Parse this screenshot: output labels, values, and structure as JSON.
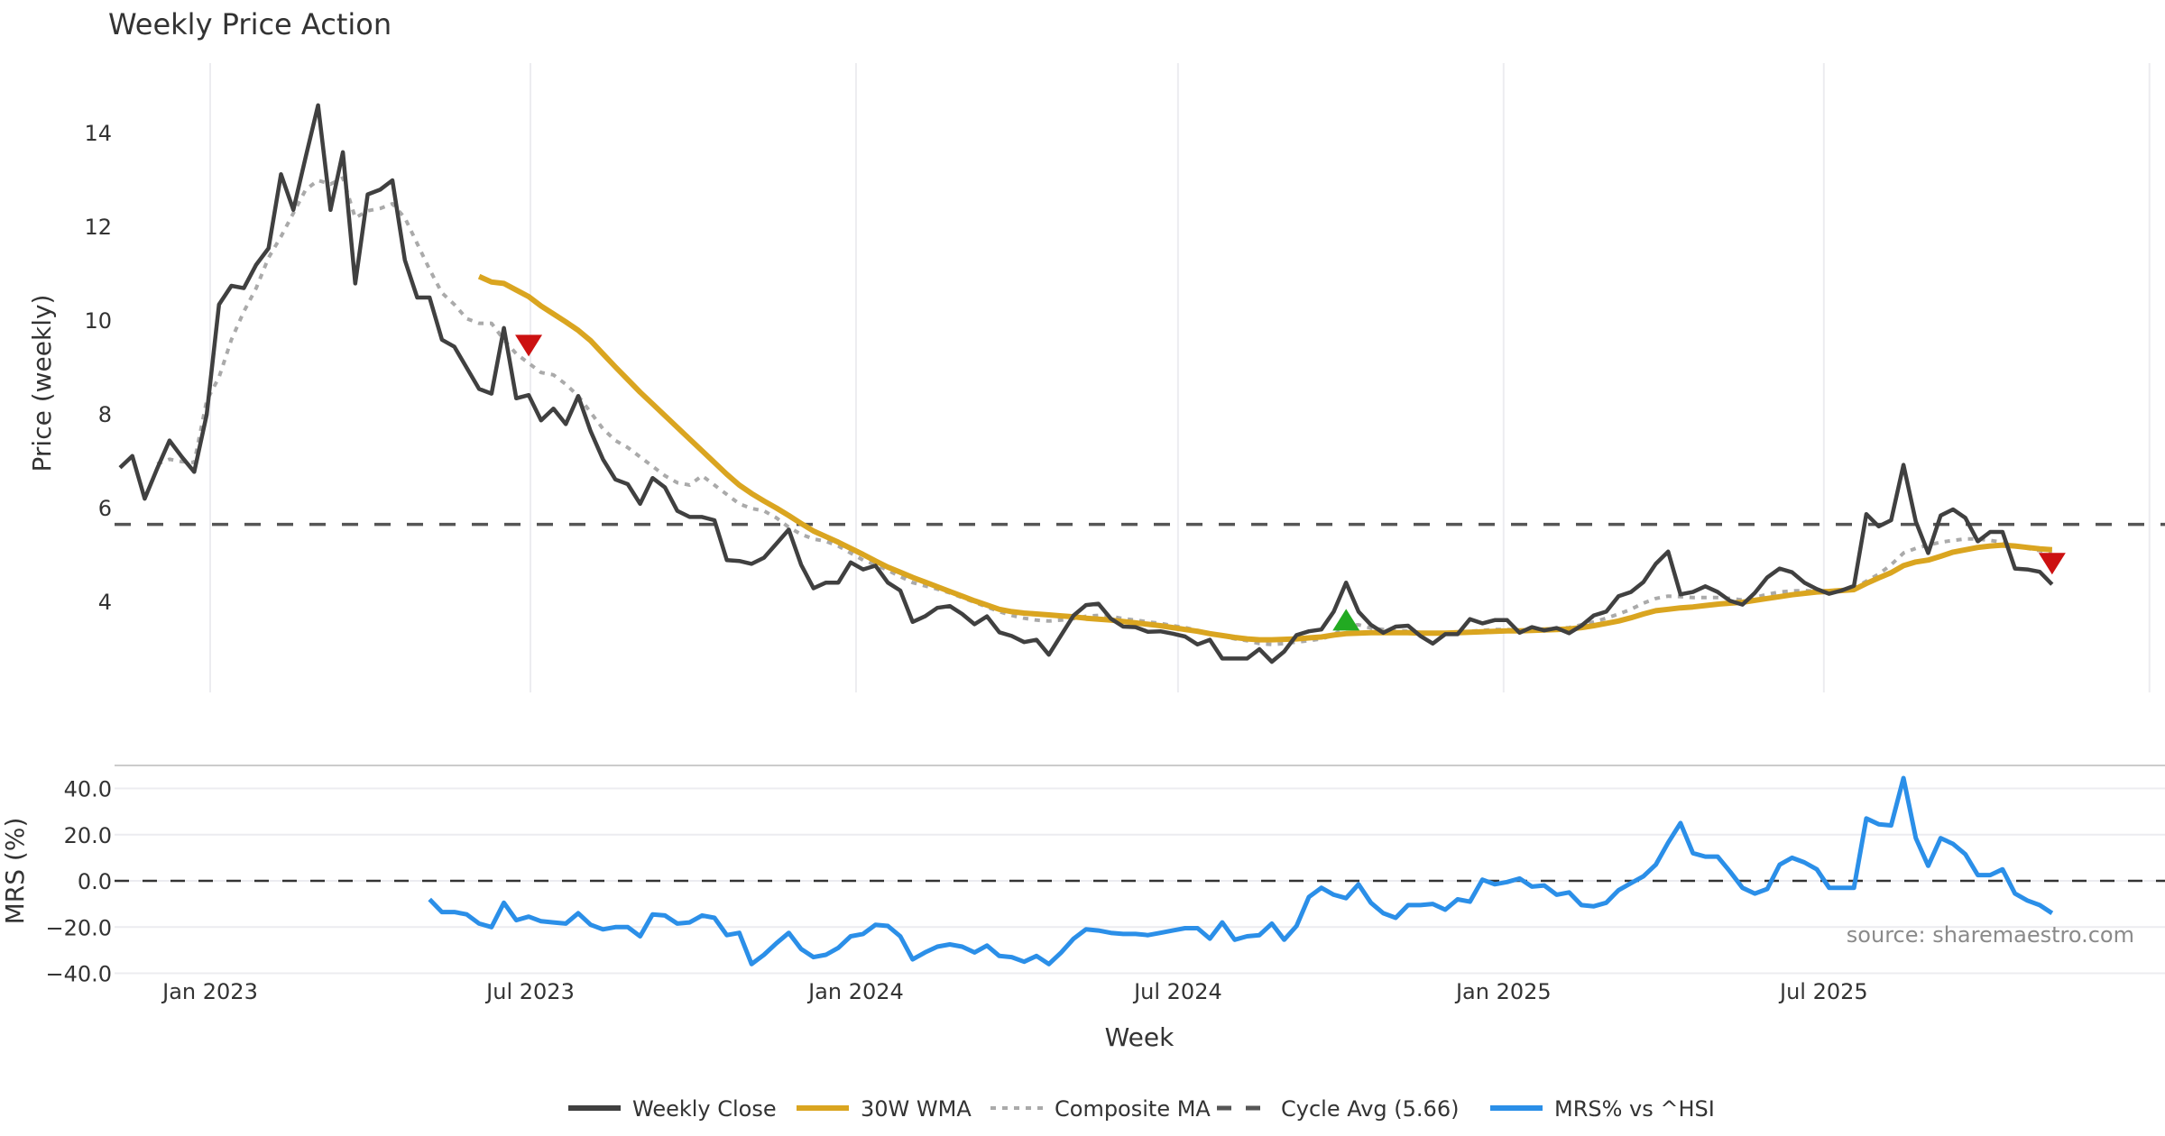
{
  "chart_data": [
    {
      "type": "line",
      "title": "Weekly Price Action",
      "xlabel": "",
      "ylabel": "Price (weekly)",
      "ylim": [
        1.7,
        15.5
      ],
      "yticks": [
        4,
        6,
        8,
        10,
        12,
        14
      ],
      "grid": "vertical",
      "x_start": "2022-11-11",
      "x_step_days": 7,
      "x_ticks": [
        {
          "date": "2023-01-01",
          "label": "Jan 2023"
        },
        {
          "date": "2023-07-01",
          "label": "Jul 2023"
        },
        {
          "date": "2024-01-01",
          "label": "Jan 2024"
        },
        {
          "date": "2024-07-01",
          "label": "Jul 2024"
        },
        {
          "date": "2025-01-01",
          "label": "Jan 2025"
        },
        {
          "date": "2025-07-01",
          "label": "Jul 2025"
        },
        {
          "date": "2026-01-01",
          "label": ""
        }
      ],
      "series": [
        {
          "name": "Weekly Close",
          "color": "#404040",
          "style": "solid",
          "start_index": 0,
          "values": [
            6.87,
            7.12,
            6.21,
            6.85,
            7.45,
            7.1,
            6.78,
            8.0,
            10.35,
            10.75,
            10.7,
            11.2,
            11.55,
            13.13,
            12.37,
            13.5,
            14.6,
            12.37,
            13.6,
            10.8,
            12.7,
            12.8,
            13.0,
            11.3,
            10.5,
            10.5,
            9.6,
            9.45,
            9.0,
            8.55,
            8.45,
            9.85,
            8.35,
            8.42,
            7.88,
            8.13,
            7.8,
            8.4,
            7.65,
            7.05,
            6.62,
            6.52,
            6.1,
            6.65,
            6.45,
            5.95,
            5.82,
            5.82,
            5.75,
            4.9,
            4.88,
            4.82,
            4.95,
            5.25,
            5.55,
            4.8,
            4.3,
            4.42,
            4.42,
            4.85,
            4.7,
            4.78,
            4.42,
            4.25,
            3.58,
            3.7,
            3.88,
            3.92,
            3.75,
            3.53,
            3.7,
            3.36,
            3.28,
            3.15,
            3.2,
            2.88,
            3.3,
            3.72,
            3.94,
            3.97,
            3.65,
            3.48,
            3.47,
            3.37,
            3.38,
            3.33,
            3.27,
            3.1,
            3.2,
            2.8,
            2.8,
            2.8,
            3.0,
            2.73,
            2.95,
            3.3,
            3.38,
            3.42,
            3.8,
            4.42,
            3.8,
            3.52,
            3.35,
            3.48,
            3.5,
            3.28,
            3.12,
            3.32,
            3.32,
            3.64,
            3.55,
            3.62,
            3.62,
            3.35,
            3.47,
            3.4,
            3.45,
            3.34,
            3.5,
            3.72,
            3.8,
            4.13,
            4.22,
            4.43,
            4.82,
            5.08,
            4.17,
            4.22,
            4.34,
            4.22,
            4.03,
            3.95,
            4.2,
            4.53,
            4.72,
            4.64,
            4.42,
            4.28,
            4.18,
            4.25,
            4.35,
            5.88,
            5.62,
            5.75,
            6.93,
            5.72,
            5.05,
            5.85,
            5.98,
            5.8,
            5.3,
            5.5,
            5.5,
            4.72,
            4.7,
            4.65,
            4.38
          ]
        },
        {
          "name": "30W WMA",
          "color": "#DAA520",
          "style": "solid",
          "start_index": 29,
          "values": [
            10.95,
            10.83,
            10.8,
            10.66,
            10.52,
            10.32,
            10.15,
            9.98,
            9.8,
            9.58,
            9.3,
            9.02,
            8.75,
            8.48,
            8.23,
            7.98,
            7.73,
            7.48,
            7.23,
            6.98,
            6.73,
            6.5,
            6.32,
            6.16,
            6.01,
            5.85,
            5.68,
            5.52,
            5.4,
            5.28,
            5.15,
            5.02,
            4.88,
            4.75,
            4.64,
            4.53,
            4.43,
            4.33,
            4.23,
            4.13,
            4.03,
            3.94,
            3.85,
            3.8,
            3.77,
            3.75,
            3.73,
            3.71,
            3.69,
            3.66,
            3.64,
            3.62,
            3.59,
            3.56,
            3.53,
            3.5,
            3.46,
            3.42,
            3.38,
            3.33,
            3.29,
            3.25,
            3.22,
            3.2,
            3.2,
            3.21,
            3.22,
            3.24,
            3.26,
            3.3,
            3.33,
            3.34,
            3.35,
            3.35,
            3.35,
            3.35,
            3.34,
            3.34,
            3.34,
            3.35,
            3.36,
            3.37,
            3.38,
            3.39,
            3.39,
            3.4,
            3.41,
            3.42,
            3.43,
            3.46,
            3.5,
            3.55,
            3.6,
            3.67,
            3.75,
            3.82,
            3.85,
            3.88,
            3.9,
            3.93,
            3.96,
            3.98,
            4.0,
            4.04,
            4.08,
            4.12,
            4.16,
            4.19,
            4.22,
            4.23,
            4.25,
            4.27,
            4.4,
            4.52,
            4.63,
            4.78,
            4.86,
            4.9,
            4.98,
            5.07,
            5.12,
            5.17,
            5.2,
            5.22,
            5.2,
            5.17,
            5.14,
            5.12
          ]
        },
        {
          "name": "Composite MA",
          "color": "#AAAAAA",
          "style": "dotted",
          "start_index": 3,
          "values": [
            6.95,
            7.05,
            7.0,
            6.98,
            8.3,
            8.8,
            9.6,
            10.2,
            10.7,
            11.35,
            11.8,
            12.3,
            12.8,
            13.0,
            12.92,
            13.05,
            12.2,
            12.35,
            12.4,
            12.5,
            12.2,
            11.65,
            11.1,
            10.6,
            10.35,
            10.05,
            9.95,
            9.95,
            9.6,
            9.3,
            9.1,
            8.9,
            8.85,
            8.65,
            8.4,
            8.05,
            7.7,
            7.45,
            7.3,
            7.1,
            6.9,
            6.7,
            6.55,
            6.5,
            6.7,
            6.5,
            6.3,
            6.1,
            6.0,
            5.95,
            5.8,
            5.6,
            5.45,
            5.35,
            5.3,
            5.2,
            5.05,
            4.9,
            4.8,
            4.68,
            4.55,
            4.42,
            4.35,
            4.28,
            4.2,
            4.1,
            4.0,
            3.9,
            3.8,
            3.72,
            3.66,
            3.62,
            3.6,
            3.62,
            3.65,
            3.7,
            3.72,
            3.7,
            3.65,
            3.62,
            3.58,
            3.55,
            3.5,
            3.46,
            3.4,
            3.34,
            3.28,
            3.22,
            3.18,
            3.12,
            3.1,
            3.12,
            3.15,
            3.18,
            3.22,
            3.3,
            3.5,
            3.52,
            3.45,
            3.42,
            3.4,
            3.38,
            3.35,
            3.33,
            3.33,
            3.35,
            3.38,
            3.4,
            3.42,
            3.42,
            3.4,
            3.4,
            3.42,
            3.44,
            3.46,
            3.52,
            3.58,
            3.66,
            3.75,
            3.85,
            3.98,
            4.08,
            4.13,
            4.12,
            4.1,
            4.1,
            4.1,
            4.08,
            4.05,
            4.1,
            4.17,
            4.22,
            4.24,
            4.25,
            4.23,
            4.22,
            4.25,
            4.3,
            4.45,
            4.6,
            4.8,
            5.05,
            5.15,
            5.22,
            5.28,
            5.32,
            5.35,
            5.35,
            5.32,
            5.28,
            5.2,
            5.15,
            5.1,
            5.08
          ]
        }
      ],
      "reference_line": {
        "name": "Cycle Avg (5.66)",
        "value": 5.66,
        "color": "#555555",
        "style": "dashed"
      },
      "signals": [
        {
          "type": "sell",
          "shape": "down-triangle",
          "index": 33,
          "value": 9.55,
          "color": "#CC1111"
        },
        {
          "type": "buy",
          "shape": "up-triangle",
          "index": 99,
          "value": 3.55,
          "color": "#22AA22"
        },
        {
          "type": "sell",
          "shape": "down-triangle",
          "index": 156,
          "value": 4.9,
          "color": "#CC1111"
        }
      ]
    },
    {
      "type": "line",
      "title": "",
      "xlabel": "Week",
      "ylabel": "MRS (%)",
      "ylim": [
        -40,
        50
      ],
      "yticks": [
        -40.0,
        -20.0,
        0.0,
        20.0,
        40.0
      ],
      "ytick_labels": [
        "−40.0",
        "−20.0",
        "0.0",
        "20.0",
        "40.0"
      ],
      "grid": "horizontal",
      "series": [
        {
          "name": "MRS% vs ^HSI",
          "color": "#2B8FE8",
          "style": "solid",
          "start_index": 25,
          "values": [
            -8,
            -13.5,
            -13.5,
            -14.5,
            -18.5,
            -20,
            -9.5,
            -17,
            -15.5,
            -17.5,
            -18,
            -18.5,
            -14,
            -19,
            -21,
            -20,
            -20,
            -24,
            -14.5,
            -15,
            -18.5,
            -18,
            -15,
            -16,
            -23.5,
            -22.5,
            -36,
            -32,
            -27,
            -22.5,
            -29.5,
            -33,
            -32,
            -29,
            -24,
            -23,
            -19,
            -19.5,
            -24,
            -34,
            -31,
            -28.5,
            -27.5,
            -28.5,
            -31,
            -28,
            -32.5,
            -33,
            -35,
            -32.5,
            -36,
            -31,
            -25,
            -21,
            -21.5,
            -22.5,
            -23,
            -23,
            -23.5,
            -22.5,
            -21.5,
            -20.5,
            -20.5,
            -25,
            -18,
            -25.5,
            -24,
            -23.5,
            -18.5,
            -25.5,
            -19.5,
            -7,
            -3,
            -6,
            -7.5,
            -1.5,
            -9.5,
            -14,
            -16,
            -10.5,
            -10.5,
            -10,
            -12.5,
            -8,
            -9,
            0.5,
            -1.5,
            -0.5,
            1,
            -2.5,
            -2,
            -6,
            -5,
            -10.5,
            -11,
            -9.5,
            -4,
            -1,
            2,
            7,
            16.5,
            25,
            12,
            10.5,
            10.5,
            4,
            -3,
            -5.5,
            -3.5,
            7,
            10,
            8,
            5,
            -3,
            -3,
            -3,
            27,
            24.5,
            24,
            44.5,
            18.5,
            6.5,
            18.5,
            16,
            11.5,
            2.5,
            2.5,
            5,
            -5.5,
            -8.5,
            -10.5,
            -14
          ]
        }
      ],
      "reference_line": {
        "value": 0,
        "color": "#333333",
        "style": "dashed"
      },
      "annotation": "source: sharemaestro.com"
    }
  ],
  "legend": {
    "placement": "bottom-center",
    "items": [
      {
        "label": "Weekly Close",
        "color": "#404040",
        "style": "solid"
      },
      {
        "label": "30W WMA",
        "color": "#DAA520",
        "style": "solid"
      },
      {
        "label": "Composite MA",
        "color": "#AAAAAA",
        "style": "dotted"
      },
      {
        "label": "Cycle Avg (5.66)",
        "color": "#555555",
        "style": "dashed"
      },
      {
        "label": "MRS% vs ^HSI",
        "color": "#2B8FE8",
        "style": "solid"
      }
    ]
  }
}
